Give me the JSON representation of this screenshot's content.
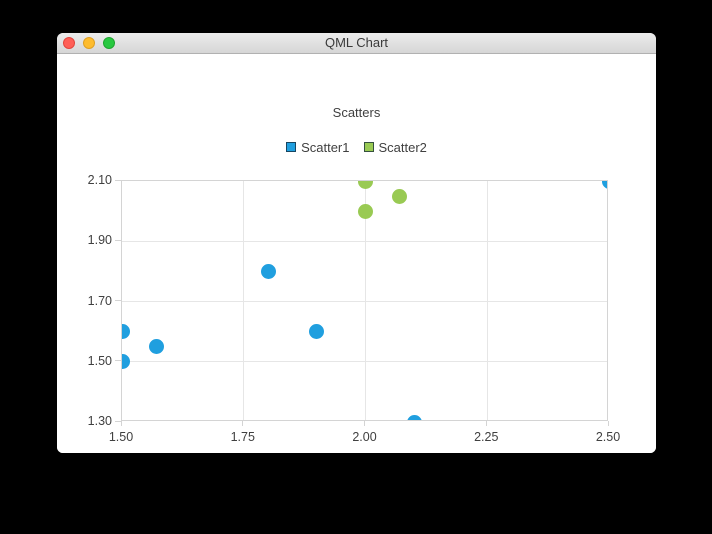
{
  "window": {
    "title": "QML Chart",
    "controls": {
      "close": "close-button",
      "minimize": "minimize-button",
      "zoom": "zoom-button"
    }
  },
  "chart_data": {
    "type": "scatter",
    "title": "Scatters",
    "series": [
      {
        "name": "Scatter1",
        "color": "#209fdf",
        "points": [
          [
            1.5,
            1.5
          ],
          [
            1.5,
            1.6
          ],
          [
            1.57,
            1.55
          ],
          [
            1.8,
            1.8
          ],
          [
            1.9,
            1.6
          ],
          [
            2.1,
            1.3
          ],
          [
            2.5,
            2.1
          ]
        ]
      },
      {
        "name": "Scatter2",
        "color": "#99ca53",
        "points": [
          [
            2.0,
            2.0
          ],
          [
            2.0,
            2.1
          ],
          [
            2.07,
            2.05
          ]
        ]
      }
    ],
    "xlim": [
      1.5,
      2.5
    ],
    "ylim": [
      1.3,
      2.1
    ],
    "x_ticks": [
      {
        "value": 1.5,
        "label": "1.50"
      },
      {
        "value": 1.75,
        "label": "1.75"
      },
      {
        "value": 2.0,
        "label": "2.00"
      },
      {
        "value": 2.25,
        "label": "2.25"
      },
      {
        "value": 2.5,
        "label": "2.50"
      }
    ],
    "y_ticks": [
      {
        "value": 1.3,
        "label": "1.30"
      },
      {
        "value": 1.5,
        "label": "1.50"
      },
      {
        "value": 1.7,
        "label": "1.70"
      },
      {
        "value": 1.9,
        "label": "1.90"
      },
      {
        "value": 2.1,
        "label": "2.10"
      }
    ],
    "grid": true,
    "legend_position": "top",
    "marker_size": 15
  },
  "colors": {
    "series_blue": "#209fdf",
    "series_green": "#99ca53",
    "grid": "#e6e6e6",
    "axis_border": "#d4d4d4",
    "label_text": "#404040",
    "titlebar_text": "#3a3a3a",
    "traffic_red": "#ff5f57",
    "traffic_yellow": "#febc2e",
    "traffic_green": "#28c840"
  }
}
